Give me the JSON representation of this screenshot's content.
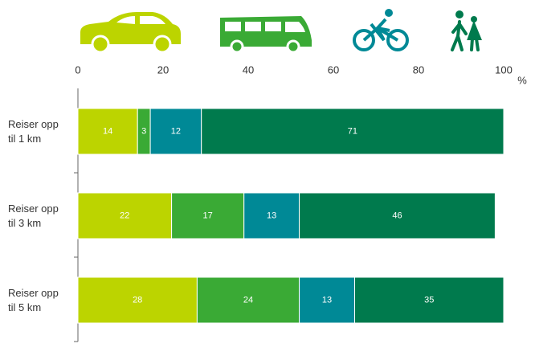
{
  "chart_data": {
    "type": "stacked-bar-horizontal",
    "categories": [
      "Reiser opp til 1 km",
      "Reiser opp til 3 km",
      "Reiser opp til 5 km"
    ],
    "series": [
      {
        "color": "#bcd400",
        "values": [
          14,
          22,
          28
        ]
      },
      {
        "color": "#3aaa35",
        "values": [
          3,
          17,
          24
        ]
      },
      {
        "color": "#008996",
        "values": [
          12,
          13,
          13
        ]
      },
      {
        "color": "#007a4d",
        "values": [
          71,
          46,
          35
        ]
      }
    ],
    "xlim": [
      0,
      100
    ],
    "xticks": [
      0,
      20,
      40,
      60,
      80,
      100
    ],
    "x_unit": "%"
  }
}
